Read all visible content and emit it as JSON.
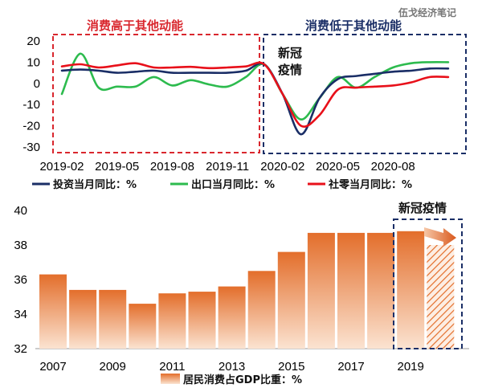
{
  "watermark": "伍戈经济笔记",
  "chart_data": [
    {
      "type": "line",
      "ylim": [
        -30,
        20
      ],
      "yticks": [
        20,
        10,
        0,
        -10,
        -20,
        -30
      ],
      "xtick_labels": [
        "2019-02",
        "2019-05",
        "2019-08",
        "2019-11",
        "2020-02",
        "2020-05",
        "2020-08"
      ],
      "x": [
        "2019-02",
        "2019-03",
        "2019-04",
        "2019-05",
        "2019-06",
        "2019-07",
        "2019-08",
        "2019-09",
        "2019-10",
        "2019-11",
        "2019-12",
        "2020-01",
        "2020-02",
        "2020-03",
        "2020-04",
        "2020-05",
        "2020-06",
        "2020-07",
        "2020-08",
        "2020-09",
        "2020-10",
        "2020-11"
      ],
      "series": [
        {
          "name": "投资当月同比：%",
          "color": "#1a2e66",
          "values": [
            6,
            6.5,
            6,
            5,
            5.5,
            6,
            5,
            5,
            5,
            5,
            6,
            9,
            -5,
            -24,
            -7,
            2,
            3.5,
            4.5,
            5.5,
            6,
            7,
            7
          ]
        },
        {
          "name": "出口当月同比：%",
          "color": "#2dbb4e",
          "values": [
            -5,
            14,
            -2,
            -1.5,
            -1.5,
            3,
            -1,
            1.5,
            -0.5,
            -1.5,
            3,
            9,
            -5,
            -17,
            -7,
            3,
            -2,
            3,
            7.5,
            9.5,
            10,
            10
          ]
        },
        {
          "name": "社零当月同比：%",
          "color": "#e8101a",
          "values": [
            8,
            9,
            7.5,
            8.5,
            9.5,
            7.5,
            7.5,
            7.8,
            7.2,
            7.5,
            8,
            9,
            -5,
            -20,
            -15,
            -3,
            -2,
            -1.5,
            -1,
            0.5,
            3,
            3
          ]
        }
      ],
      "annotations": {
        "left_box_label": "消费高于其他动能",
        "right_box_label": "消费低于其他动能",
        "covid_line1": "新冠",
        "covid_line2": "疫情"
      }
    },
    {
      "type": "bar",
      "ylim": [
        32,
        40
      ],
      "yticks": [
        40,
        38,
        36,
        34,
        32
      ],
      "categories": [
        "2007",
        "2008",
        "2009",
        "2010",
        "2011",
        "2012",
        "2013",
        "2014",
        "2015",
        "2016",
        "2017",
        "2018",
        "2019",
        "2020"
      ],
      "xtick_labels": [
        "2007",
        "2009",
        "2011",
        "2013",
        "2015",
        "2017",
        "2019"
      ],
      "values": [
        36.3,
        35.4,
        35.4,
        34.6,
        35.2,
        35.3,
        35.6,
        36.5,
        37.6,
        38.7,
        38.7,
        38.7,
        38.8,
        38.0
      ],
      "estimated_last": true,
      "series": [
        {
          "name": "居民消费占GDP比重：%",
          "color": "#e0793a"
        }
      ],
      "annotations": {
        "covid_label": "新冠疫情"
      }
    }
  ]
}
